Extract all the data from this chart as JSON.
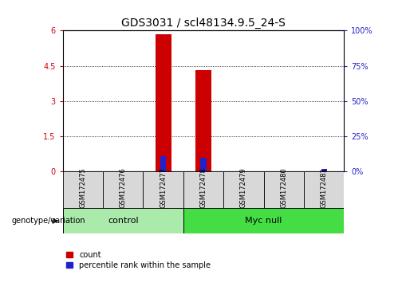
{
  "title": "GDS3031 / scl48134.9.5_24-S",
  "samples": [
    "GSM172475",
    "GSM172476",
    "GSM172477",
    "GSM172478",
    "GSM172479",
    "GSM172480",
    "GSM172481"
  ],
  "count_values": [
    0,
    0,
    5.85,
    4.3,
    0,
    0,
    0
  ],
  "percentile_values": [
    0,
    0,
    11,
    10,
    0,
    0,
    2
  ],
  "ylim_left": [
    0,
    6
  ],
  "ylim_right": [
    0,
    100
  ],
  "yticks_left": [
    0,
    1.5,
    3,
    4.5,
    6
  ],
  "ytick_labels_left": [
    "0",
    "1.5",
    "3",
    "4.5",
    "6"
  ],
  "yticks_right": [
    0,
    25,
    50,
    75,
    100
  ],
  "ytick_labels_right": [
    "0%",
    "25%",
    "50%",
    "75%",
    "100%"
  ],
  "groups": [
    {
      "label": "control",
      "indices": [
        0,
        1,
        2
      ],
      "color": "#aaeaaa"
    },
    {
      "label": "Myc null",
      "indices": [
        3,
        4,
        5,
        6
      ],
      "color": "#44dd44"
    }
  ],
  "bar_color_count": "#cc0000",
  "bar_color_percentile": "#2222cc",
  "bar_width": 0.4,
  "grid_color": "black",
  "grid_linestyle": "dotted",
  "genotype_label": "genotype/variation",
  "legend_count_label": "count",
  "legend_percentile_label": "percentile rank within the sample",
  "left_yaxis_color": "#cc0000",
  "right_yaxis_color": "#2222cc",
  "title_fontsize": 10,
  "tick_fontsize": 7,
  "sample_fontsize": 6,
  "group_fontsize": 8,
  "legend_fontsize": 7
}
